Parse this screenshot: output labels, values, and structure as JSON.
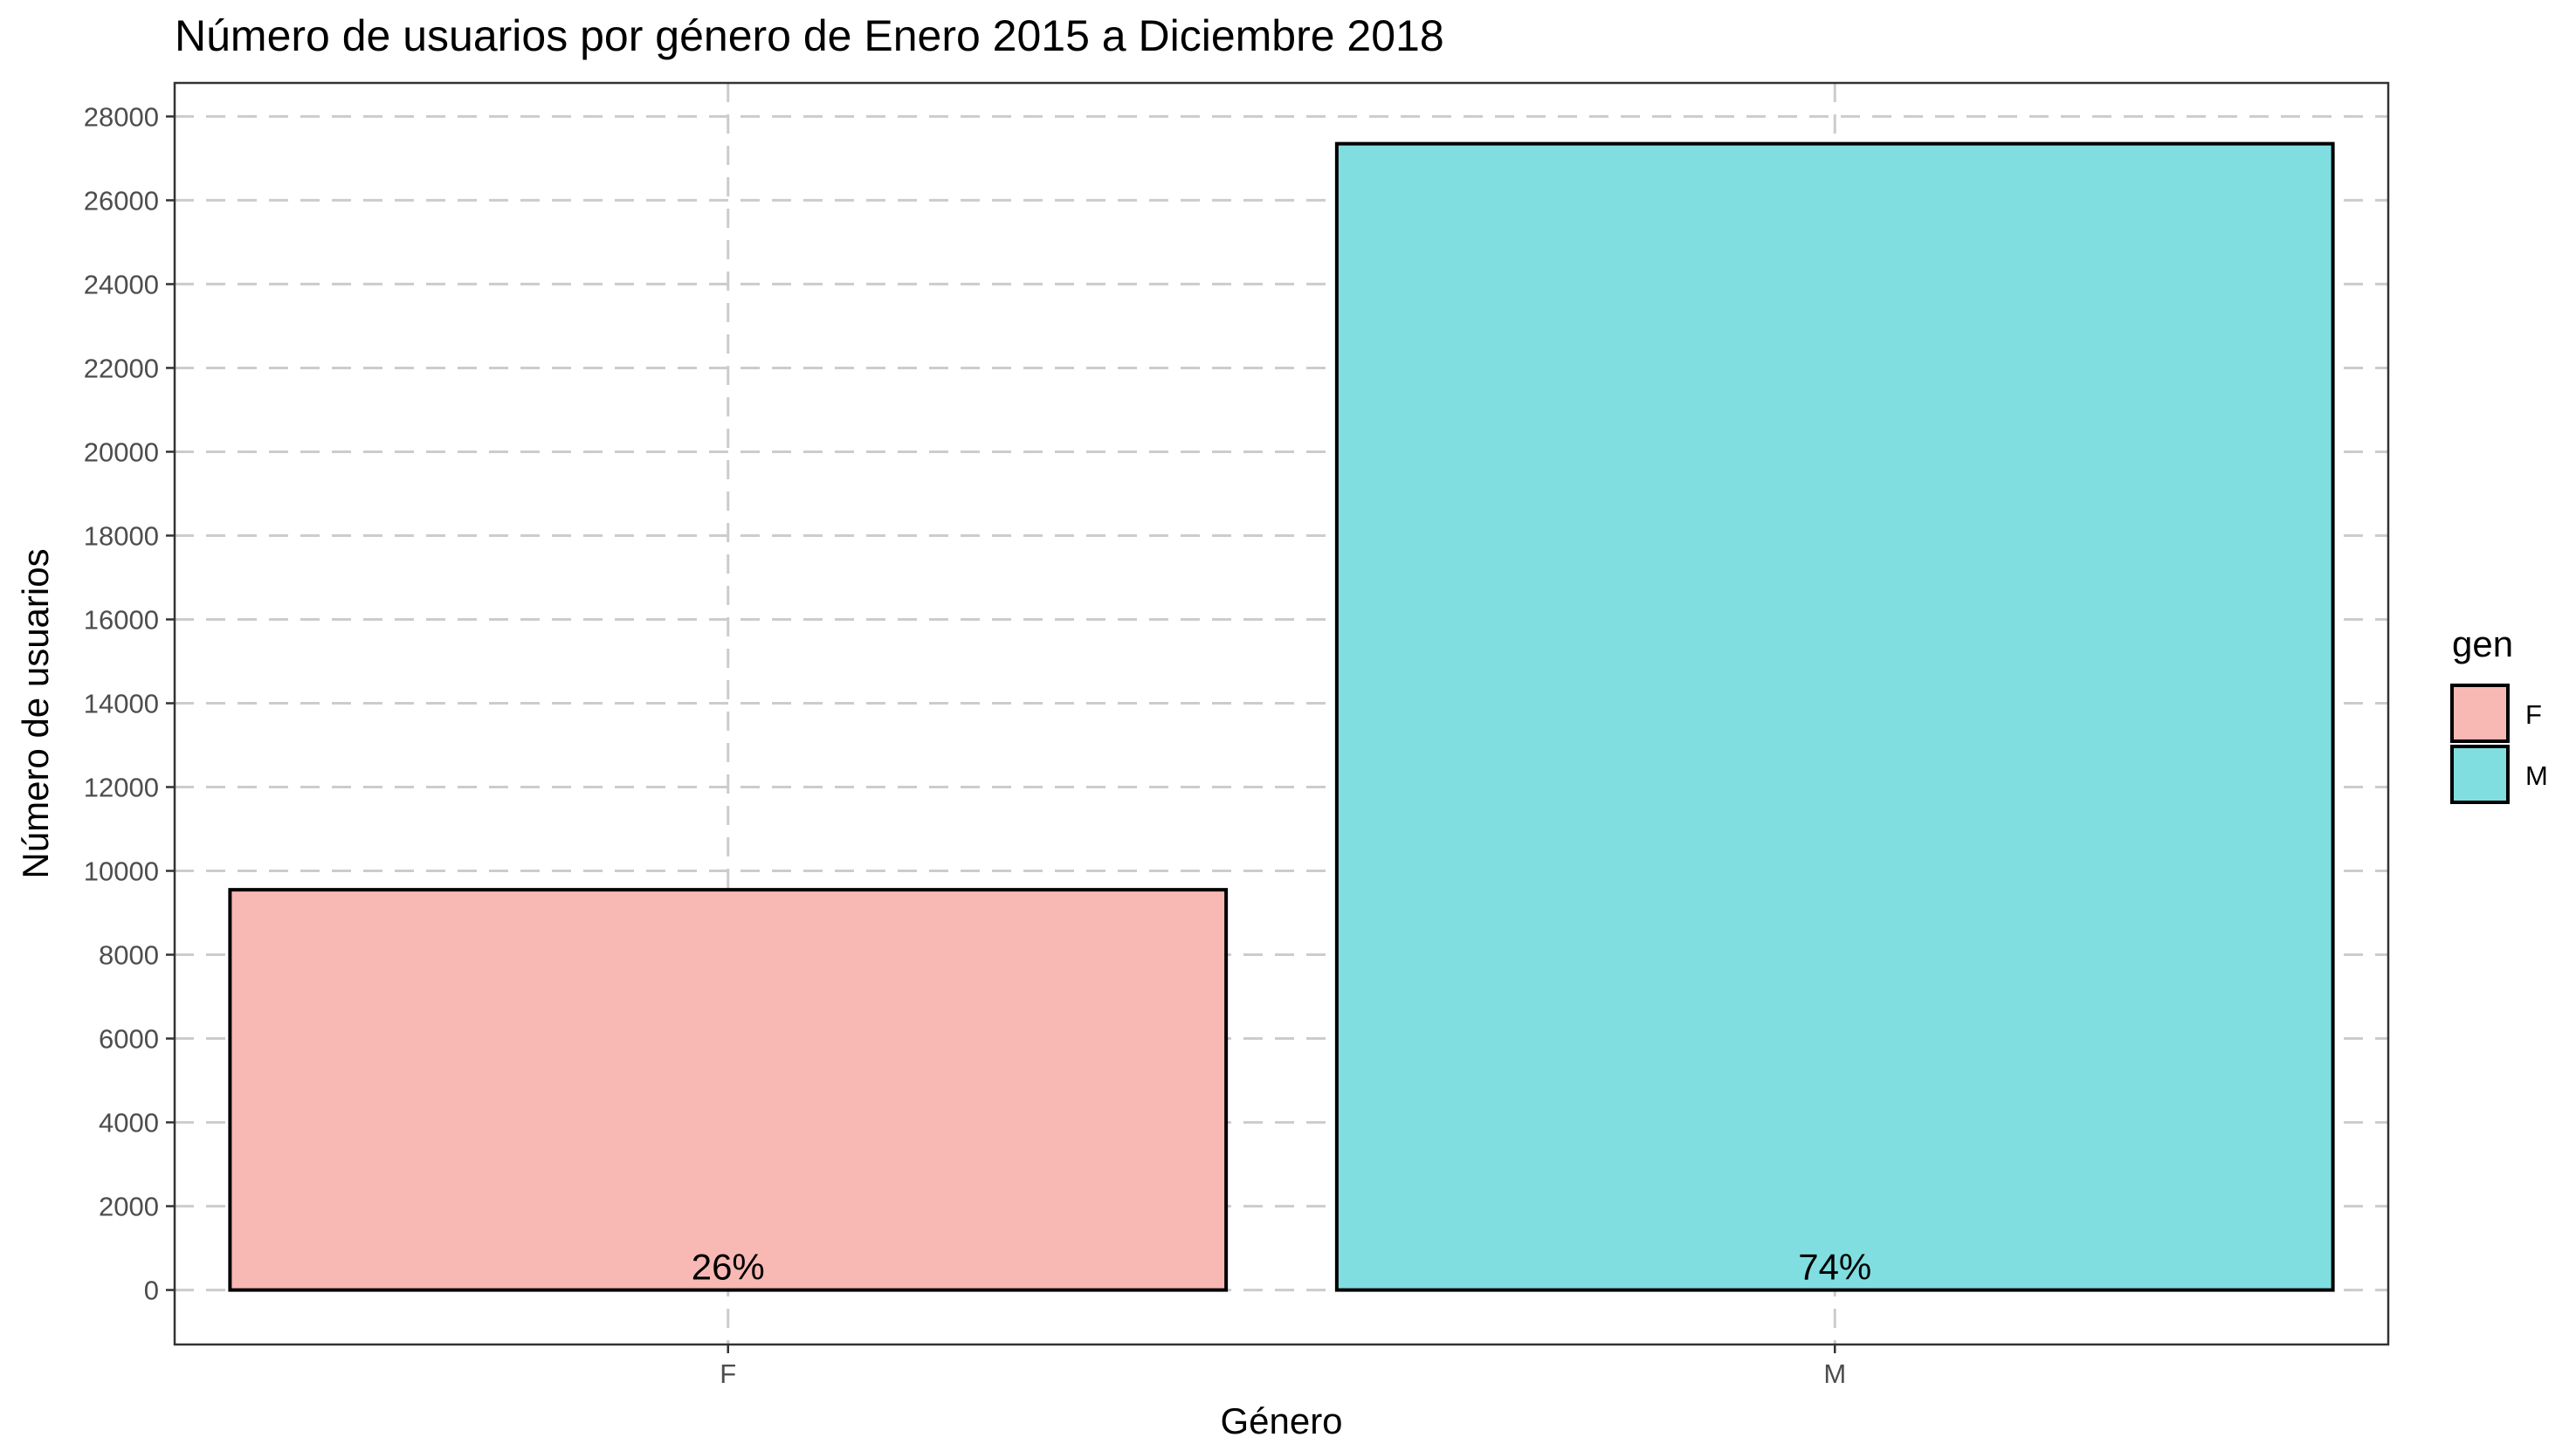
{
  "chart_data": {
    "type": "bar",
    "title": "Número de usuarios por género de Enero 2015 a Diciembre 2018",
    "xlabel": "Género",
    "ylabel": "Número de usuarios",
    "categories": [
      "F",
      "M"
    ],
    "values": [
      9550,
      27350
    ],
    "bar_labels": [
      "26%",
      "74%"
    ],
    "colors": [
      "#F8B8B4",
      "#80DEE0"
    ],
    "ylim": [
      -1300,
      28800
    ],
    "yticks": [
      0,
      2000,
      4000,
      6000,
      8000,
      10000,
      12000,
      14000,
      16000,
      18000,
      20000,
      22000,
      24000,
      26000,
      28000
    ],
    "grid": true,
    "legend": {
      "title": "gen",
      "position": "right",
      "items": [
        {
          "label": "F",
          "color": "#F8B8B4"
        },
        {
          "label": "M",
          "color": "#80DEE0"
        }
      ]
    }
  }
}
